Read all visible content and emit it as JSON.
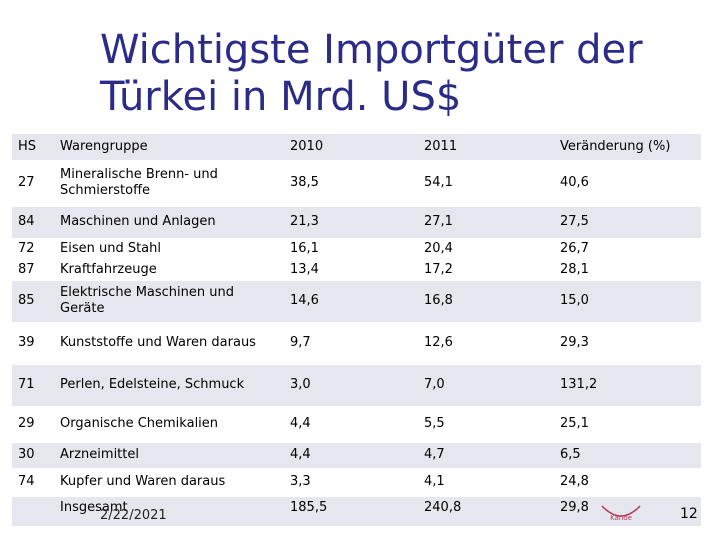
{
  "slide": {
    "title_line1": "Wichtigste Importgüter der",
    "title_line2": "Türkei in Mrd. US$",
    "date": "2/22/2021",
    "page": "12",
    "logo_text": "Kanoe"
  },
  "table": {
    "headers": [
      "HS",
      "Warengruppe",
      "2010",
      "2011",
      "Veränderung (%)"
    ],
    "rows": [
      {
        "hs": "27",
        "name": "Mineralische Brenn- und Schmierstoffe",
        "y2010": "38,5",
        "y2011": "54,1",
        "change": "40,6"
      },
      {
        "hs": "84",
        "name": "Maschinen und Anlagen",
        "y2010": "21,3",
        "y2011": "27,1",
        "change": "27,5"
      },
      {
        "hs": "72",
        "name": "Eisen und Stahl",
        "y2010": "16,1",
        "y2011": "20,4",
        "change": "26,7"
      },
      {
        "hs": "87",
        "name": "Kraftfahrzeuge",
        "y2010": "13,4",
        "y2011": "17,2",
        "change": "28,1"
      },
      {
        "hs": "85",
        "name": "Elektrische Maschinen und Geräte",
        "y2010": "14,6",
        "y2011": "16,8",
        "change": "15,0"
      },
      {
        "hs": "39",
        "name": "Kunststoffe und Waren daraus",
        "y2010": "9,7",
        "y2011": "12,6",
        "change": "29,3"
      },
      {
        "hs": "71",
        "name": "Perlen, Edelsteine, Schmuck",
        "y2010": "3,0",
        "y2011": "7,0",
        "change": "131,2"
      },
      {
        "hs": "29",
        "name": "Organische Chemikalien",
        "y2010": "4,4",
        "y2011": "5,5",
        "change": "25,1"
      },
      {
        "hs": "30",
        "name": "Arzneimittel",
        "y2010": "4,4",
        "y2011": "4,7",
        "change": "6,5"
      },
      {
        "hs": "74",
        "name": "Kupfer und Waren daraus",
        "y2010": "3,3",
        "y2011": "4,1",
        "change": "24,8"
      },
      {
        "hs": "",
        "name": "Insgesamt",
        "y2010": "185,5",
        "y2011": "240,8",
        "change": "29,8"
      }
    ]
  }
}
